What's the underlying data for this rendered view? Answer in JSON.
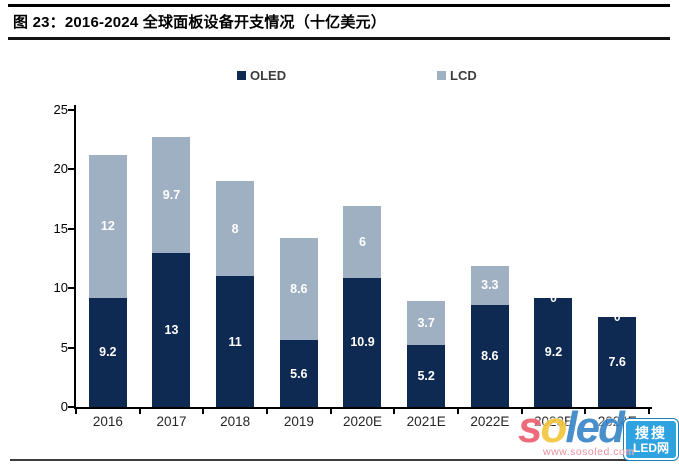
{
  "figure": {
    "title": "图 23：2016-2024 全球面板设备开支情况（十亿美元）"
  },
  "chart_data": {
    "type": "bar",
    "stacked": true,
    "title": "2016-2024 全球面板设备开支情况（十亿美元）",
    "categories": [
      "2016",
      "2017",
      "2018",
      "2019",
      "2020E",
      "2021E",
      "2022E",
      "2023E",
      "2024E"
    ],
    "series": [
      {
        "name": "OLED",
        "color": "#0f2a52",
        "values": [
          9.2,
          13,
          11,
          5.6,
          10.9,
          5.2,
          8.6,
          9.2,
          7.6
        ],
        "labels": [
          "9.2",
          "13",
          "11",
          "5.6",
          "10.9",
          "5.2",
          "8.6",
          "9.2",
          "7.6"
        ]
      },
      {
        "name": "LCD",
        "color": "#9fb0c2",
        "values": [
          12,
          9.7,
          8,
          8.6,
          6,
          3.7,
          3.3,
          0,
          0
        ],
        "labels": [
          "12",
          "9.7",
          "8",
          "8.6",
          "6",
          "3.7",
          "3.3",
          "0",
          "0"
        ]
      }
    ],
    "ylim": [
      0,
      25
    ],
    "yticks": [
      0,
      5,
      10,
      15,
      20,
      25
    ],
    "grid": false,
    "legend_position": "top",
    "value_label_color": "#ffffff"
  },
  "watermark": {
    "logo": "soled",
    "logo_colors": [
      "#ec5f6f",
      "#f2c63c",
      "#3a86c8",
      "#3a86c8",
      "#3a86c8"
    ],
    "badge_top": "搜搜",
    "badge_bottom": "LED网",
    "url": "www.sosoled.com"
  }
}
